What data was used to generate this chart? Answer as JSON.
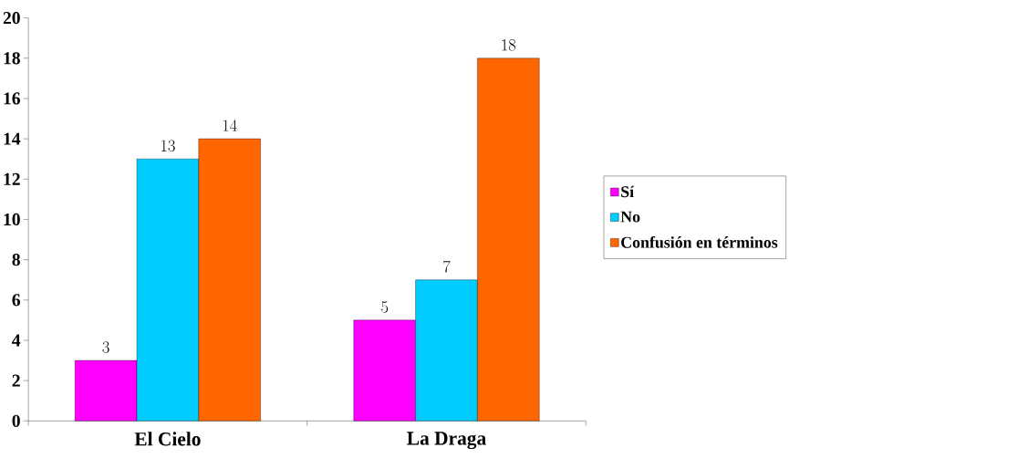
{
  "chart_data": {
    "type": "bar",
    "categories": [
      "El Cielo",
      "La Draga"
    ],
    "series": [
      {
        "name": "Sí",
        "color": "#ff00ff",
        "values": [
          3,
          5
        ]
      },
      {
        "name": "No",
        "color": "#00ccff",
        "values": [
          13,
          7
        ]
      },
      {
        "name": "Confusión en términos",
        "color": "#ff6600",
        "values": [
          14,
          18
        ]
      }
    ],
    "ylim": [
      0,
      20
    ],
    "yticks": [
      0,
      2,
      4,
      6,
      8,
      10,
      12,
      14,
      16,
      18,
      20
    ],
    "data_labels": true,
    "legend": "right",
    "grid": false
  }
}
